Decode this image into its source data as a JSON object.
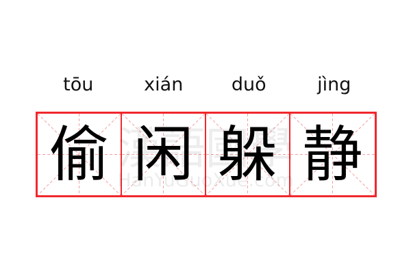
{
  "entries": [
    {
      "pinyin": "tōu",
      "hanzi": "偷"
    },
    {
      "pinyin": "xián",
      "hanzi": "闲"
    },
    {
      "pinyin": "duǒ",
      "hanzi": "躲"
    },
    {
      "pinyin": "jìng",
      "hanzi": "静"
    }
  ],
  "watermark": {
    "chinese": "漢語國學",
    "latin": "HanYuGuoXue.com"
  },
  "colors": {
    "grid_border": "#f0282d",
    "guide_lines": "#f5a0a0",
    "text": "#000000"
  }
}
